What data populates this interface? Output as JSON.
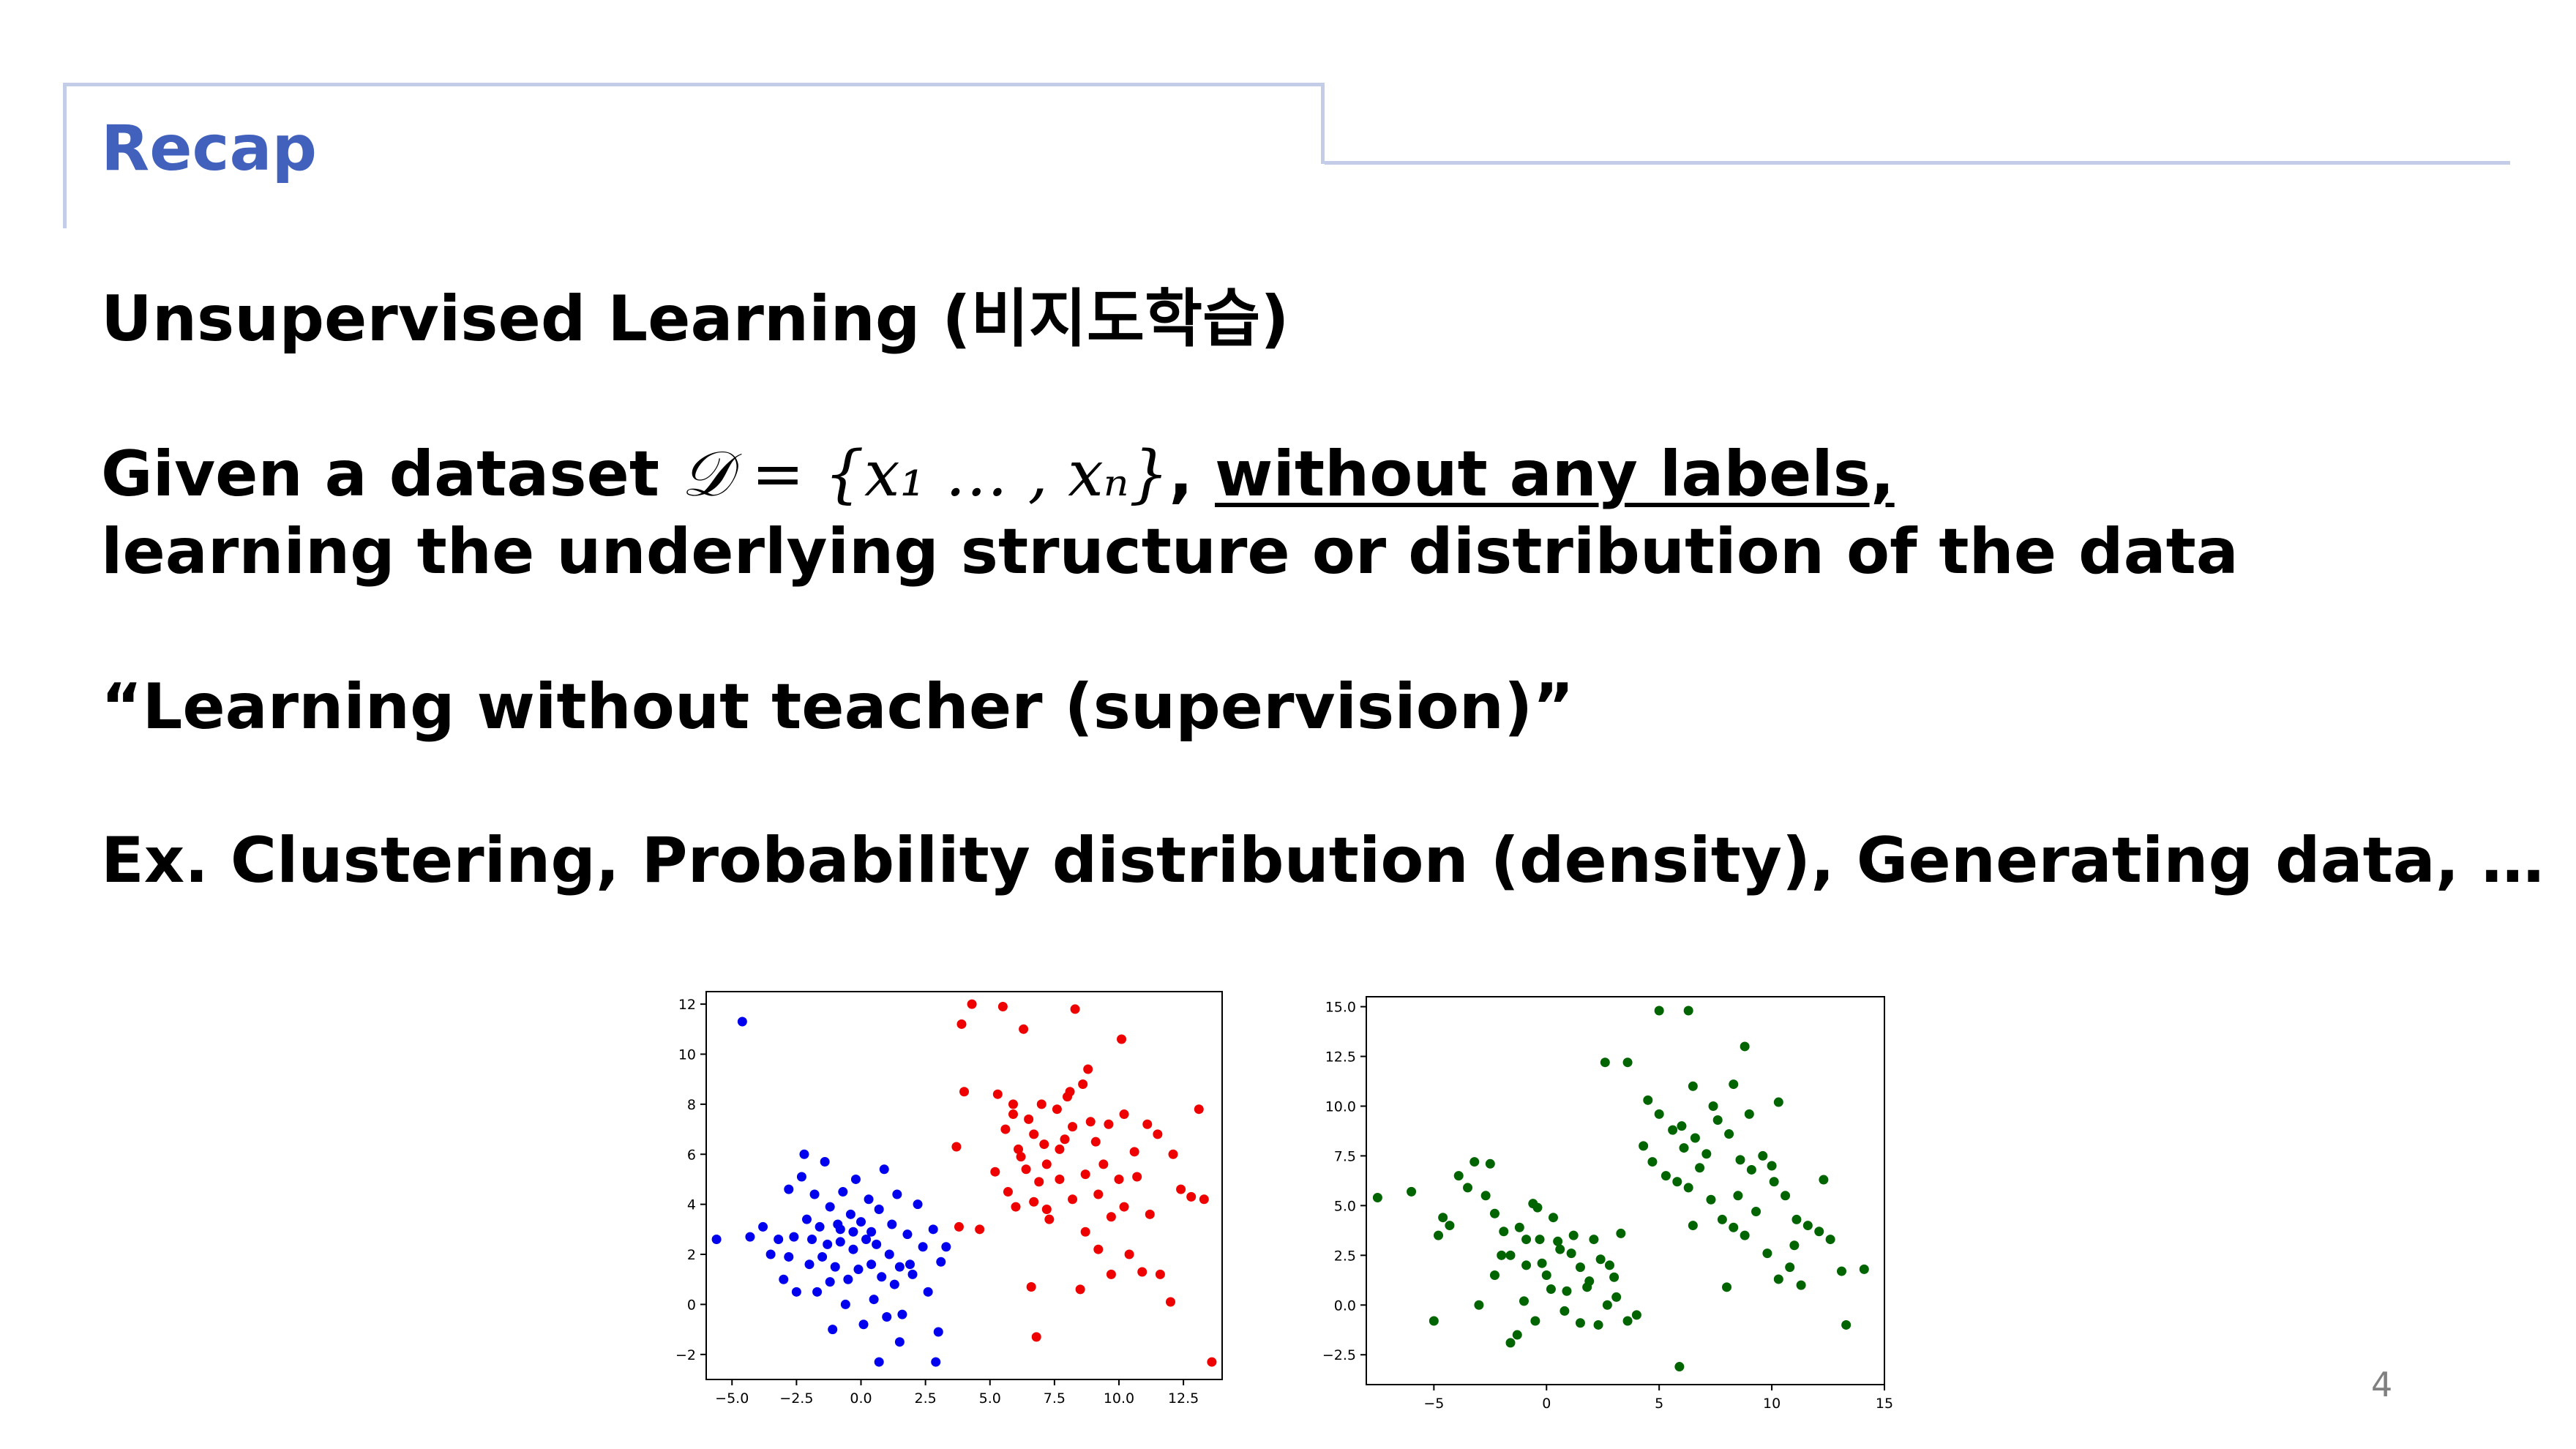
{
  "slide": {
    "title": "Recap",
    "heading": "Unsupervised Learning (비지도학습)",
    "line2_prefix": "Given a dataset ",
    "line2_math": "𝒟 = {x₁ … , xₙ}",
    "line2_comma": ", ",
    "line2_underlined": "without any labels,",
    "line3": "learning the underlying structure or distribution of the data",
    "quote": "“Learning without teacher (supervision)”",
    "examples": "Ex. Clustering, Probability distribution (density), Generating data, …",
    "page_number": "4"
  },
  "chart_data": [
    {
      "type": "scatter",
      "xlim": [
        -6,
        14
      ],
      "ylim": [
        -3,
        12.5
      ],
      "xticks": [
        -5.0,
        -2.5,
        0.0,
        2.5,
        5.0,
        7.5,
        10.0,
        12.5
      ],
      "xtick_labels": [
        "−5.0",
        "−2.5",
        "0.0",
        "2.5",
        "5.0",
        "7.5",
        "10.0",
        "12.5"
      ],
      "yticks": [
        -2,
        0,
        2,
        4,
        6,
        8,
        10,
        12
      ],
      "ytick_labels": [
        "−2",
        "0",
        "2",
        "4",
        "6",
        "8",
        "10",
        "12"
      ],
      "series": [
        {
          "color": "#0000ee",
          "points": [
            [
              -4.6,
              11.3
            ],
            [
              -5.6,
              2.6
            ],
            [
              -4.3,
              2.7
            ],
            [
              -3.8,
              3.1
            ],
            [
              -3.5,
              2.0
            ],
            [
              -3.2,
              2.6
            ],
            [
              -3.0,
              1.0
            ],
            [
              -2.8,
              4.6
            ],
            [
              -2.6,
              2.7
            ],
            [
              -2.5,
              0.5
            ],
            [
              -2.3,
              5.1
            ],
            [
              -2.2,
              6.0
            ],
            [
              -2.1,
              3.4
            ],
            [
              -2.0,
              1.6
            ],
            [
              -1.9,
              2.6
            ],
            [
              -1.8,
              4.4
            ],
            [
              -1.7,
              0.5
            ],
            [
              -1.6,
              3.1
            ],
            [
              -1.5,
              1.9
            ],
            [
              -1.4,
              5.7
            ],
            [
              -1.3,
              2.4
            ],
            [
              -1.2,
              3.9
            ],
            [
              -1.1,
              -1.0
            ],
            [
              -1.0,
              1.5
            ],
            [
              -0.9,
              3.2
            ],
            [
              -0.8,
              2.5
            ],
            [
              -0.7,
              4.5
            ],
            [
              -0.6,
              0.0
            ],
            [
              -0.5,
              1.0
            ],
            [
              -0.4,
              3.6
            ],
            [
              -0.3,
              2.2
            ],
            [
              -0.2,
              5.0
            ],
            [
              -0.1,
              1.4
            ],
            [
              0.0,
              3.3
            ],
            [
              0.1,
              -0.8
            ],
            [
              0.2,
              2.6
            ],
            [
              0.3,
              4.2
            ],
            [
              0.4,
              1.6
            ],
            [
              0.5,
              0.2
            ],
            [
              0.6,
              2.4
            ],
            [
              0.7,
              3.8
            ],
            [
              0.8,
              1.1
            ],
            [
              0.9,
              5.4
            ],
            [
              1.0,
              -0.5
            ],
            [
              1.1,
              2.0
            ],
            [
              1.2,
              3.2
            ],
            [
              1.3,
              0.8
            ],
            [
              1.4,
              4.4
            ],
            [
              1.5,
              1.5
            ],
            [
              1.6,
              -0.4
            ],
            [
              1.8,
              2.8
            ],
            [
              2.0,
              1.2
            ],
            [
              2.2,
              4.0
            ],
            [
              2.4,
              2.3
            ],
            [
              2.6,
              0.5
            ],
            [
              2.8,
              3.0
            ],
            [
              3.0,
              -1.1
            ],
            [
              3.1,
              1.7
            ],
            [
              3.3,
              2.3
            ],
            [
              2.9,
              -2.3
            ],
            [
              1.5,
              -1.5
            ],
            [
              0.7,
              -2.3
            ],
            [
              -0.3,
              2.9
            ],
            [
              0.4,
              2.9
            ],
            [
              -1.2,
              0.9
            ],
            [
              -0.8,
              3.0
            ],
            [
              1.9,
              1.6
            ],
            [
              -2.8,
              1.9
            ]
          ]
        },
        {
          "color": "#ee0000",
          "points": [
            [
              4.3,
              12.0
            ],
            [
              5.5,
              11.9
            ],
            [
              8.3,
              11.8
            ],
            [
              3.9,
              11.2
            ],
            [
              6.3,
              11.0
            ],
            [
              10.1,
              10.6
            ],
            [
              8.8,
              9.4
            ],
            [
              4.0,
              8.5
            ],
            [
              5.3,
              8.4
            ],
            [
              5.9,
              8.0
            ],
            [
              6.5,
              7.4
            ],
            [
              7.0,
              8.0
            ],
            [
              7.6,
              7.8
            ],
            [
              8.1,
              8.5
            ],
            [
              8.6,
              8.8
            ],
            [
              9.1,
              6.5
            ],
            [
              9.6,
              7.2
            ],
            [
              10.2,
              7.6
            ],
            [
              10.6,
              6.1
            ],
            [
              11.1,
              7.2
            ],
            [
              12.1,
              6.0
            ],
            [
              13.1,
              7.8
            ],
            [
              5.6,
              7.0
            ],
            [
              6.1,
              6.2
            ],
            [
              6.7,
              6.8
            ],
            [
              7.2,
              5.6
            ],
            [
              7.7,
              6.2
            ],
            [
              8.2,
              7.1
            ],
            [
              8.7,
              5.2
            ],
            [
              9.2,
              4.4
            ],
            [
              9.7,
              3.5
            ],
            [
              10.2,
              3.9
            ],
            [
              10.7,
              5.1
            ],
            [
              11.2,
              3.6
            ],
            [
              12.4,
              4.6
            ],
            [
              12.8,
              4.3
            ],
            [
              13.3,
              4.2
            ],
            [
              5.2,
              5.3
            ],
            [
              5.7,
              4.5
            ],
            [
              6.2,
              5.9
            ],
            [
              6.7,
              4.1
            ],
            [
              7.2,
              3.8
            ],
            [
              7.7,
              5.0
            ],
            [
              8.2,
              4.2
            ],
            [
              8.7,
              2.9
            ],
            [
              9.2,
              2.2
            ],
            [
              9.7,
              1.2
            ],
            [
              10.4,
              2.0
            ],
            [
              10.9,
              1.3
            ],
            [
              11.6,
              1.2
            ],
            [
              12.0,
              0.1
            ],
            [
              13.6,
              -2.3
            ],
            [
              6.6,
              0.7
            ],
            [
              6.8,
              -1.3
            ],
            [
              8.5,
              0.6
            ],
            [
              7.3,
              3.4
            ],
            [
              6.0,
              3.9
            ],
            [
              4.6,
              3.0
            ],
            [
              3.8,
              3.1
            ],
            [
              3.7,
              6.3
            ],
            [
              5.9,
              7.6
            ],
            [
              7.9,
              6.6
            ],
            [
              9.4,
              5.6
            ],
            [
              8.9,
              7.3
            ],
            [
              7.1,
              6.4
            ],
            [
              6.4,
              5.4
            ],
            [
              10.0,
              5.0
            ],
            [
              11.5,
              6.8
            ],
            [
              8.0,
              8.3
            ],
            [
              6.9,
              4.9
            ]
          ]
        }
      ]
    },
    {
      "type": "scatter",
      "xlim": [
        -8,
        15
      ],
      "ylim": [
        -4,
        15.5
      ],
      "xticks": [
        -5,
        0,
        5,
        10,
        15
      ],
      "xtick_labels": [
        "−5",
        "0",
        "5",
        "10",
        "15"
      ],
      "yticks": [
        -2.5,
        0.0,
        2.5,
        5.0,
        7.5,
        10.0,
        12.5,
        15.0
      ],
      "ytick_labels": [
        "−2.5",
        "0.0",
        "2.5",
        "5.0",
        "7.5",
        "10.0",
        "12.5",
        "15.0"
      ],
      "series": [
        {
          "color": "#006400",
          "points": [
            [
              -7.5,
              5.4
            ],
            [
              -6.0,
              5.7
            ],
            [
              -4.8,
              3.5
            ],
            [
              -4.6,
              4.4
            ],
            [
              -4.3,
              4.0
            ],
            [
              -3.9,
              6.5
            ],
            [
              -3.5,
              5.9
            ],
            [
              -3.2,
              7.2
            ],
            [
              -2.7,
              5.5
            ],
            [
              -2.5,
              7.1
            ],
            [
              -2.3,
              4.6
            ],
            [
              -1.9,
              3.7
            ],
            [
              -1.6,
              2.5
            ],
            [
              -1.2,
              3.9
            ],
            [
              -0.9,
              2.0
            ],
            [
              -0.6,
              5.1
            ],
            [
              -0.3,
              3.3
            ],
            [
              0.0,
              1.5
            ],
            [
              0.3,
              4.4
            ],
            [
              0.6,
              2.8
            ],
            [
              0.9,
              0.7
            ],
            [
              1.2,
              3.5
            ],
            [
              1.5,
              1.9
            ],
            [
              1.8,
              0.9
            ],
            [
              2.1,
              3.3
            ],
            [
              2.4,
              2.3
            ],
            [
              2.7,
              0.0
            ],
            [
              3.0,
              1.4
            ],
            [
              3.3,
              3.6
            ],
            [
              3.6,
              -0.8
            ],
            [
              4.0,
              -0.5
            ],
            [
              -1.3,
              -1.5
            ],
            [
              -0.5,
              -0.8
            ],
            [
              0.8,
              -0.3
            ],
            [
              -2.3,
              1.5
            ],
            [
              -1.0,
              0.2
            ],
            [
              0.2,
              0.8
            ],
            [
              1.5,
              -0.9
            ],
            [
              -0.9,
              3.3
            ],
            [
              0.5,
              3.2
            ],
            [
              1.9,
              1.2
            ],
            [
              -3.0,
              0.0
            ],
            [
              -5.0,
              -0.8
            ],
            [
              -2.0,
              2.5
            ],
            [
              -0.2,
              2.1
            ],
            [
              1.1,
              2.6
            ],
            [
              3.1,
              0.4
            ],
            [
              -1.6,
              -1.9
            ],
            [
              2.3,
              -1.0
            ],
            [
              -0.4,
              4.9
            ],
            [
              2.8,
              2.0
            ],
            [
              5.0,
              14.8
            ],
            [
              6.3,
              14.8
            ],
            [
              8.8,
              13.0
            ],
            [
              2.6,
              12.2
            ],
            [
              3.6,
              12.2
            ],
            [
              6.5,
              11.0
            ],
            [
              8.3,
              11.1
            ],
            [
              10.3,
              10.2
            ],
            [
              4.5,
              10.3
            ],
            [
              5.0,
              9.6
            ],
            [
              5.6,
              8.8
            ],
            [
              6.1,
              7.9
            ],
            [
              6.6,
              8.4
            ],
            [
              7.1,
              7.6
            ],
            [
              7.6,
              9.3
            ],
            [
              8.1,
              8.6
            ],
            [
              8.6,
              7.3
            ],
            [
              9.1,
              6.8
            ],
            [
              9.6,
              7.5
            ],
            [
              10.1,
              6.2
            ],
            [
              10.6,
              5.5
            ],
            [
              11.1,
              4.3
            ],
            [
              11.6,
              4.0
            ],
            [
              12.1,
              3.7
            ],
            [
              12.6,
              3.3
            ],
            [
              13.1,
              1.7
            ],
            [
              13.3,
              -1.0
            ],
            [
              4.7,
              7.2
            ],
            [
              5.3,
              6.5
            ],
            [
              5.8,
              6.2
            ],
            [
              6.3,
              5.9
            ],
            [
              6.8,
              6.9
            ],
            [
              7.3,
              5.3
            ],
            [
              7.8,
              4.3
            ],
            [
              8.3,
              3.9
            ],
            [
              8.8,
              3.5
            ],
            [
              9.3,
              4.7
            ],
            [
              9.8,
              2.6
            ],
            [
              10.3,
              1.3
            ],
            [
              10.8,
              1.9
            ],
            [
              11.3,
              1.0
            ],
            [
              12.3,
              6.3
            ],
            [
              14.1,
              1.8
            ],
            [
              10.0,
              7.0
            ],
            [
              9.0,
              9.6
            ],
            [
              6.5,
              4.0
            ],
            [
              5.9,
              -3.1
            ],
            [
              8.0,
              0.9
            ],
            [
              4.3,
              8.0
            ],
            [
              7.4,
              10.0
            ],
            [
              6.0,
              9.0
            ],
            [
              8.5,
              5.5
            ],
            [
              11.0,
              3.0
            ]
          ]
        }
      ]
    }
  ]
}
